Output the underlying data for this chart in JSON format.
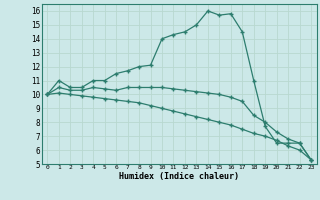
{
  "xlabel": "Humidex (Indice chaleur)",
  "bg_color": "#cce8e8",
  "grid_color": "#b8d8d0",
  "line_color": "#2d7d6e",
  "xlim": [
    -0.5,
    23.5
  ],
  "ylim": [
    5,
    16.5
  ],
  "xticks": [
    0,
    1,
    2,
    3,
    4,
    5,
    6,
    7,
    8,
    9,
    10,
    11,
    12,
    13,
    14,
    15,
    16,
    17,
    18,
    19,
    20,
    21,
    22,
    23
  ],
  "yticks": [
    5,
    6,
    7,
    8,
    9,
    10,
    11,
    12,
    13,
    14,
    15,
    16
  ],
  "line1_x": [
    0,
    1,
    2,
    3,
    4,
    5,
    6,
    7,
    8,
    9,
    10,
    11,
    12,
    13,
    14,
    15,
    16,
    17,
    18,
    19,
    20,
    21,
    22,
    23
  ],
  "line1_y": [
    10,
    11,
    10.5,
    10.5,
    11,
    11,
    11.5,
    11.7,
    12,
    12.1,
    14,
    14.3,
    14.5,
    15,
    16,
    15.7,
    15.8,
    14.5,
    11,
    7.7,
    6.5,
    6.5,
    6.5,
    5.3
  ],
  "line2_x": [
    0,
    1,
    2,
    3,
    4,
    5,
    6,
    7,
    8,
    9,
    10,
    11,
    12,
    13,
    14,
    15,
    16,
    17,
    18,
    19,
    20,
    21,
    22,
    23
  ],
  "line2_y": [
    10,
    10.5,
    10.3,
    10.3,
    10.5,
    10.4,
    10.3,
    10.5,
    10.5,
    10.5,
    10.5,
    10.4,
    10.3,
    10.2,
    10.1,
    10.0,
    9.8,
    9.5,
    8.5,
    8.0,
    7.3,
    6.8,
    6.5,
    5.3
  ],
  "line3_x": [
    0,
    1,
    2,
    3,
    4,
    5,
    6,
    7,
    8,
    9,
    10,
    11,
    12,
    13,
    14,
    15,
    16,
    17,
    18,
    19,
    20,
    21,
    22,
    23
  ],
  "line3_y": [
    10,
    10.1,
    10.0,
    9.9,
    9.8,
    9.7,
    9.6,
    9.5,
    9.4,
    9.2,
    9.0,
    8.8,
    8.6,
    8.4,
    8.2,
    8.0,
    7.8,
    7.5,
    7.2,
    7.0,
    6.7,
    6.3,
    6.0,
    5.3
  ]
}
